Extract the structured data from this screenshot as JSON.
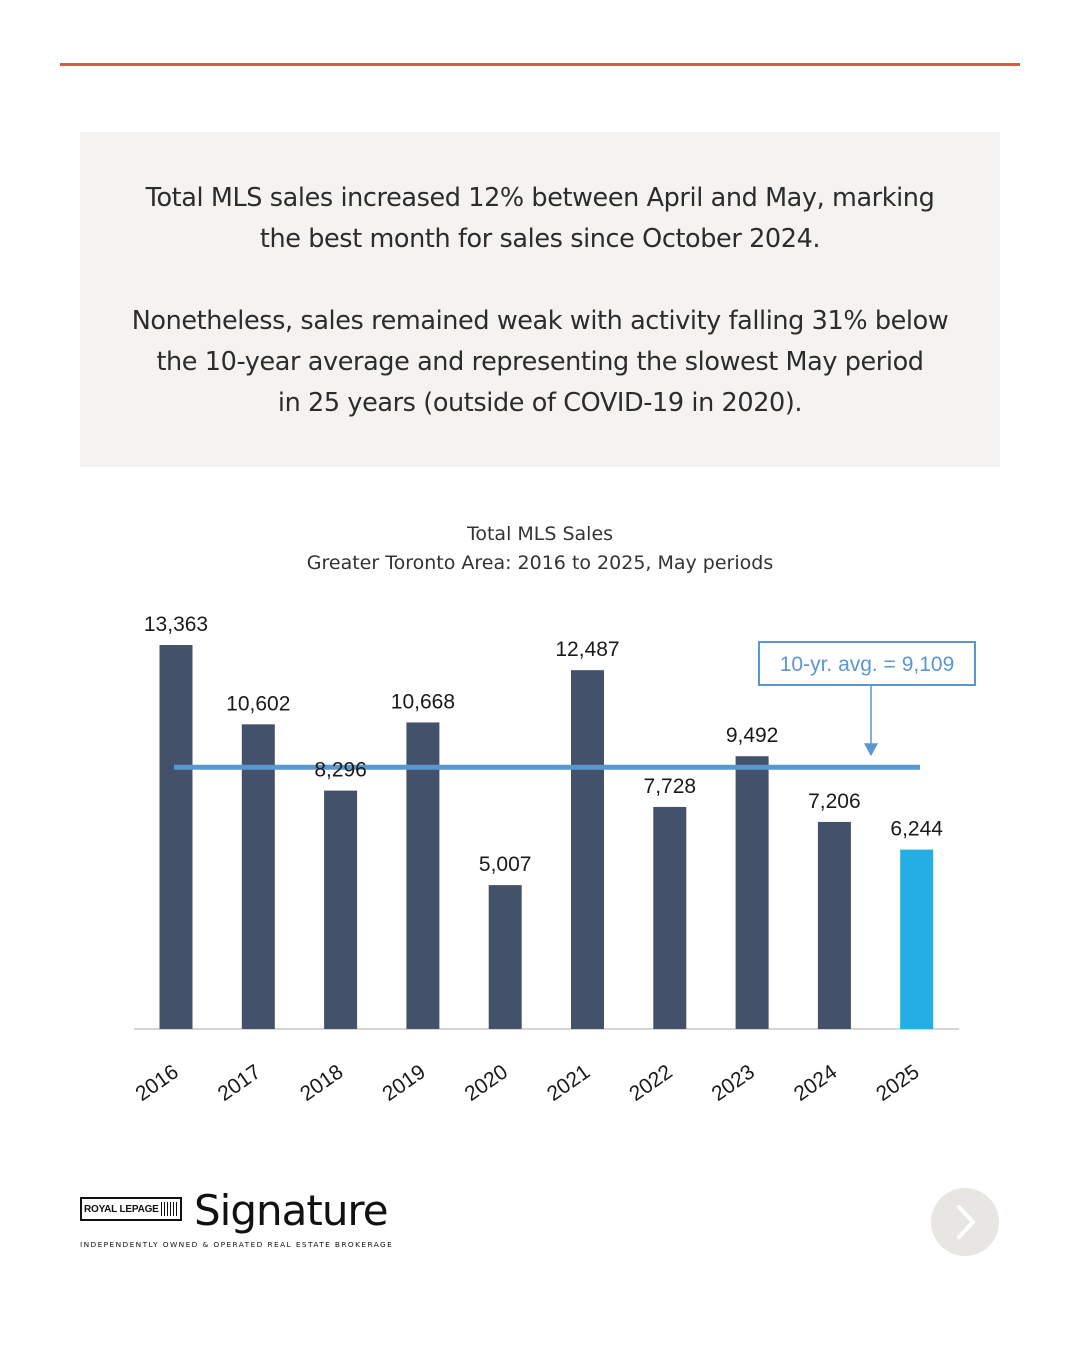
{
  "summary": {
    "paragraph1": [
      "Total MLS sales increased 12% between April and May, marking",
      "the best month for sales since October 2024."
    ],
    "paragraph2": [
      "Nonetheless, sales remained weak with activity falling 31% below",
      "the 10-year average and representing the slowest May period",
      "in 25 years (outside of COVID-19 in 2020)."
    ]
  },
  "chart_data": {
    "type": "bar",
    "title": "Total MLS Sales",
    "subtitle": "Greater Toronto Area: 2016 to 2025, May periods",
    "categories": [
      "2016",
      "2017",
      "2018",
      "2019",
      "2020",
      "2021",
      "2022",
      "2023",
      "2024",
      "2025"
    ],
    "values": [
      13363,
      10602,
      8296,
      10668,
      5007,
      12487,
      7728,
      9492,
      7206,
      6244
    ],
    "data_labels": [
      "13,363",
      "10,602",
      "8,296",
      "10,668",
      "5,007",
      "12,487",
      "7,728",
      "9,492",
      "7,206",
      "6,244"
    ],
    "ylim": [
      0,
      13363
    ],
    "grid": false,
    "bar_color": "#44516a",
    "highlight_color": "#24aee4",
    "highlight_category": "2025",
    "average_line": {
      "value": 9109,
      "label": "10-yr. avg. = 9,109",
      "color": "#5b97cf"
    }
  },
  "brand": {
    "logo_badge": "ROYAL LEPAGE",
    "name": "Signature",
    "tagline": "INDEPENDENTLY OWNED & OPERATED REAL ESTATE BROKERAGE",
    "accent_color": "#e2574c"
  },
  "navigation": {
    "next_icon": "chevron-right-icon"
  }
}
